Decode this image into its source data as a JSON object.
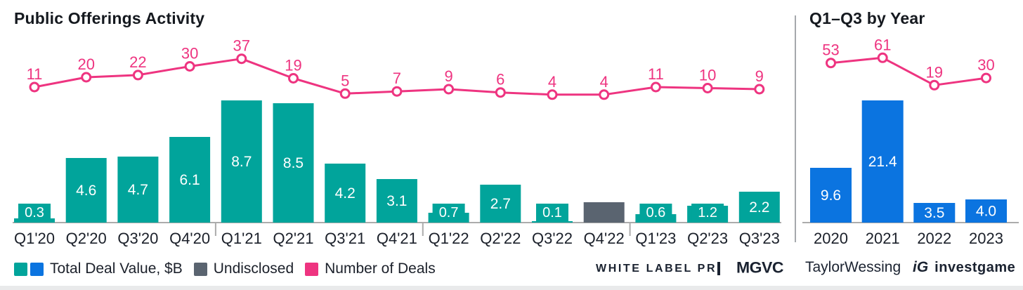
{
  "colors": {
    "teal": "#01A49B",
    "blue": "#0B74E0",
    "pink": "#EE3480",
    "gray": "#5A6470",
    "axis": "#ACACAC",
    "text_dark": "#1B202A",
    "bar_label": "#FFFFFF"
  },
  "titles": {
    "left": "Public Offerings Activity",
    "right": "Q1–Q3 by Year"
  },
  "legend": {
    "total_deal_value": "Total Deal Value, $B",
    "undisclosed": "Undisclosed",
    "number_of_deals": "Number of Deals"
  },
  "logos": {
    "white_label_pr": "WHITE LABEL PR",
    "mgvc": "MGVC",
    "taylor_wessing": "TaylorWessing",
    "investgame_glyph": "iG",
    "investgame": "investgame"
  },
  "chart_data": [
    {
      "type": "bar+line",
      "title": "Public Offerings Activity",
      "grid": false,
      "y_axis_visible": false,
      "legend_position": "bottom",
      "categories": [
        "Q1'20",
        "Q2'20",
        "Q3'20",
        "Q4'20",
        "Q1'21",
        "Q2'21",
        "Q3'21",
        "Q4'21",
        "Q1'22",
        "Q2'22",
        "Q3'22",
        "Q4'22",
        "Q1'23",
        "Q2'23",
        "Q3'23"
      ],
      "series": [
        {
          "name": "Total Deal Value, $B",
          "type": "bar",
          "values": [
            0.3,
            4.6,
            4.7,
            6.1,
            8.7,
            8.5,
            4.2,
            3.1,
            0.7,
            2.7,
            0.1,
            null,
            0.6,
            1.2,
            2.2
          ],
          "labels": [
            "0.3",
            "4.6",
            "4.7",
            "6.1",
            "8.7",
            "8.5",
            "4.2",
            "3.1",
            "0.7",
            "2.7",
            "0.1",
            "",
            "0.6",
            "1.2",
            "2.2"
          ],
          "undisclosed_index": 11,
          "undisclosed_estimated_value": 1.45
        },
        {
          "name": "Number of Deals",
          "type": "line",
          "values": [
            11,
            20,
            22,
            30,
            37,
            19,
            5,
            7,
            9,
            6,
            4,
            4,
            11,
            10,
            9
          ]
        }
      ]
    },
    {
      "type": "bar+line",
      "title": "Q1–Q3 by Year",
      "grid": false,
      "y_axis_visible": false,
      "categories": [
        "2020",
        "2021",
        "2022",
        "2023"
      ],
      "series": [
        {
          "name": "Total Deal Value, $B",
          "type": "bar",
          "values": [
            9.6,
            21.4,
            3.5,
            4.0
          ],
          "labels": [
            "9.6",
            "21.4",
            "3.5",
            "4.0"
          ]
        },
        {
          "name": "Number of Deals",
          "type": "line",
          "values": [
            53,
            61,
            19,
            30
          ]
        }
      ]
    }
  ]
}
